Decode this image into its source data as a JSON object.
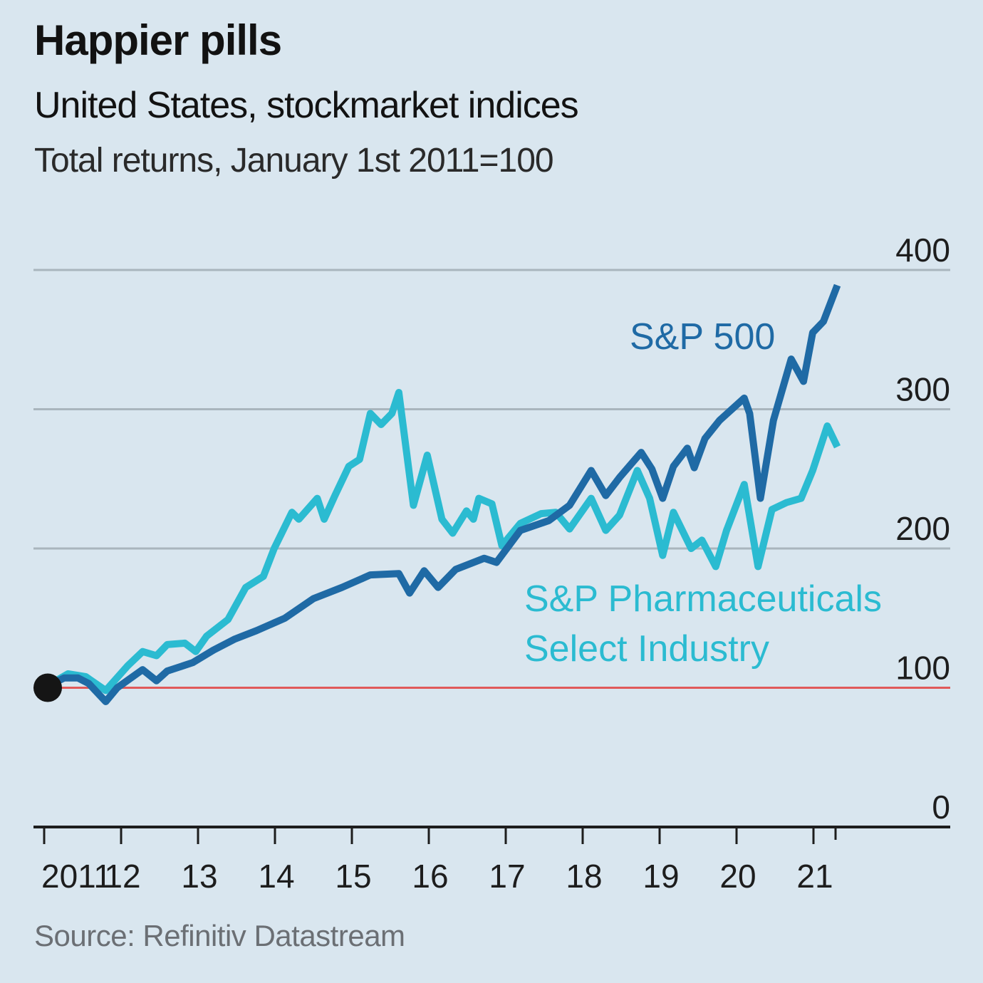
{
  "header": {
    "title": "Happier pills",
    "subtitle": "United States, stockmarket indices",
    "subsubtitle": "Total returns, January 1st 2011=100"
  },
  "footer": {
    "source": "Source: Refinitiv Datastream"
  },
  "colors": {
    "background": "#d9e6ef",
    "sp500": "#1f6aa5",
    "pharma": "#2bbbd1",
    "baseline": "#e0595a",
    "gridline": "#a9b5bd",
    "axis": "#1d1d1d",
    "start_dot": "#151515"
  },
  "chart_data": {
    "type": "line",
    "title": "Happier pills",
    "subtitle": "United States, stockmarket indices",
    "ylabel": "Total returns, January 1st 2011=100",
    "xlabel": "",
    "xlim": [
      2011.0,
      2021.25
    ],
    "ylim": [
      0,
      400
    ],
    "yticks": [
      0,
      100,
      200,
      300,
      400
    ],
    "ytick_labels": [
      "0",
      "100",
      "200",
      "300",
      "400"
    ],
    "xticks": [
      2011,
      2012,
      2013,
      2014,
      2015,
      2016,
      2017,
      2018,
      2019,
      2020,
      2021
    ],
    "xtick_labels": [
      "2011",
      "12",
      "13",
      "14",
      "15",
      "16",
      "17",
      "18",
      "19",
      "20",
      "21"
    ],
    "grid": true,
    "baseline": 100,
    "start_marker": {
      "x": 2011.0,
      "y": 100
    },
    "series": [
      {
        "name": "S&P 500",
        "label_lines": [
          "S&P 500"
        ],
        "x": [
          2011.0,
          2011.26,
          2011.44,
          2011.58,
          2011.8,
          2011.95,
          2012.28,
          2012.46,
          2012.6,
          2012.93,
          2013.2,
          2013.48,
          2013.76,
          2014.13,
          2014.5,
          2014.87,
          2015.24,
          2015.61,
          2015.75,
          2015.94,
          2016.12,
          2016.35,
          2016.72,
          2016.88,
          2017.19,
          2017.56,
          2017.83,
          2018.11,
          2018.3,
          2018.48,
          2018.76,
          2018.9,
          2019.04,
          2019.18,
          2019.36,
          2019.45,
          2019.59,
          2019.78,
          2020.1,
          2020.17,
          2020.31,
          2020.48,
          2020.71,
          2020.87,
          2020.99,
          2021.13,
          2021.31
        ],
        "values": [
          100,
          107,
          107,
          103,
          90,
          100,
          113,
          105,
          112,
          118,
          127,
          135,
          141,
          150,
          164,
          172,
          181,
          182,
          168,
          184,
          172,
          185,
          193,
          190,
          213,
          220,
          231,
          256,
          238,
          251,
          269,
          257,
          236,
          259,
          272,
          258,
          279,
          292,
          308,
          297,
          236,
          292,
          336,
          320,
          355,
          363,
          389
        ]
      },
      {
        "name": "S&P Pharmaceuticals Select Industry",
        "label_lines": [
          "S&P Pharmaceuticals",
          "Select Industry"
        ],
        "x": [
          2011.0,
          2011.31,
          2011.54,
          2011.8,
          2012.09,
          2012.28,
          2012.46,
          2012.6,
          2012.83,
          2012.97,
          2013.11,
          2013.39,
          2013.62,
          2013.85,
          2013.99,
          2014.22,
          2014.31,
          2014.55,
          2014.64,
          2014.78,
          2014.96,
          2015.1,
          2015.24,
          2015.38,
          2015.52,
          2015.61,
          2015.8,
          2015.98,
          2016.17,
          2016.31,
          2016.49,
          2016.58,
          2016.65,
          2016.82,
          2016.95,
          2017.19,
          2017.46,
          2017.65,
          2017.83,
          2018.11,
          2018.3,
          2018.48,
          2018.71,
          2018.87,
          2019.04,
          2019.18,
          2019.41,
          2019.55,
          2019.73,
          2019.87,
          2020.1,
          2020.28,
          2020.46,
          2020.65,
          2020.84,
          2020.99,
          2021.18,
          2021.31
        ],
        "values": [
          100,
          110,
          108,
          98,
          116,
          126,
          123,
          131,
          132,
          126,
          137,
          149,
          172,
          180,
          200,
          226,
          221,
          236,
          221,
          238,
          259,
          264,
          297,
          289,
          297,
          312,
          231,
          267,
          221,
          211,
          227,
          221,
          236,
          232,
          202,
          218,
          225,
          226,
          214,
          236,
          213,
          224,
          256,
          236,
          195,
          226,
          200,
          206,
          187,
          213,
          246,
          187,
          228,
          233,
          236,
          256,
          288,
          273
        ]
      }
    ],
    "annotations": [
      {
        "text": "S&P 500",
        "series": "S&P 500"
      },
      {
        "text": "S&P Pharmaceuticals Select Industry",
        "series": "S&P Pharmaceuticals Select Industry"
      }
    ]
  }
}
